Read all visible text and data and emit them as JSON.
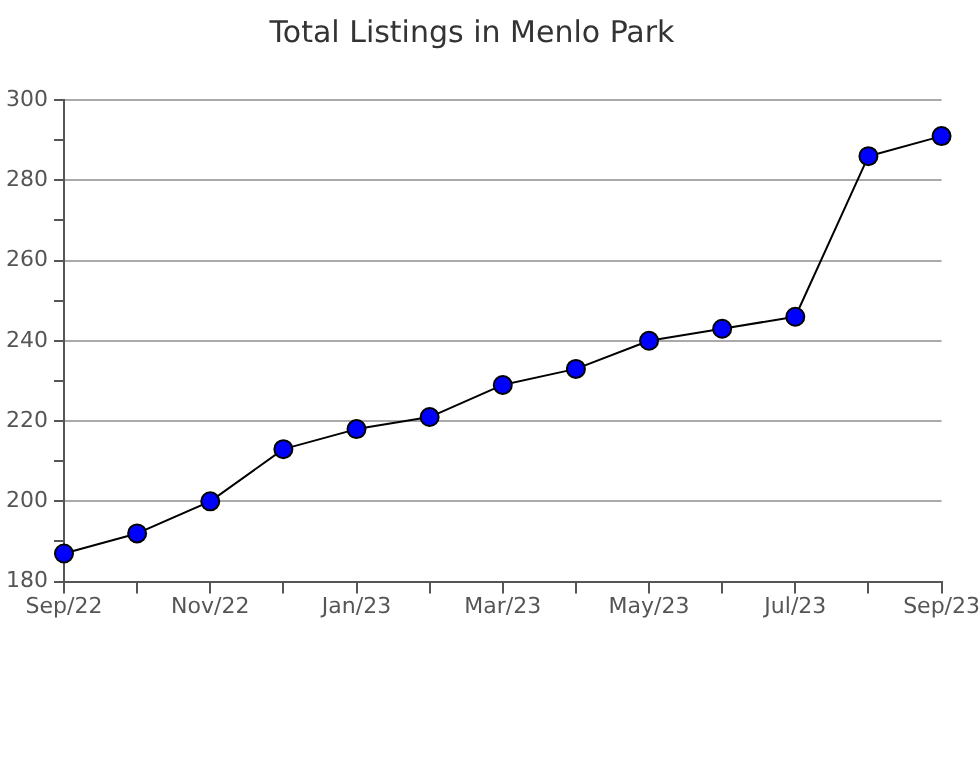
{
  "chart_data": {
    "type": "line",
    "title": "Total Listings in Menlo Park",
    "categories": [
      "Sep/22",
      null,
      "Nov/22",
      null,
      "Jan/23",
      null,
      "Mar/23",
      null,
      "May/23",
      null,
      "Jul/23",
      null,
      "Sep/23"
    ],
    "series": [
      {
        "color": "#0000ff",
        "values": [
          187,
          192,
          200,
          213,
          218,
          221,
          229,
          233,
          240,
          243,
          246,
          286,
          291
        ]
      }
    ],
    "ylim": [
      180,
      300
    ],
    "yticks": [
      180,
      {
        "value": 190,
        "label": null
      },
      200,
      {
        "value": 210,
        "label": null
      },
      220,
      {
        "value": 230,
        "label": null
      },
      240,
      {
        "value": 250,
        "label": null
      },
      260,
      {
        "value": 270,
        "label": null
      },
      280,
      {
        "value": 290,
        "label": null
      },
      300
    ],
    "grid": "y",
    "legend": false,
    "marker": "circle",
    "line_style": "solid"
  }
}
